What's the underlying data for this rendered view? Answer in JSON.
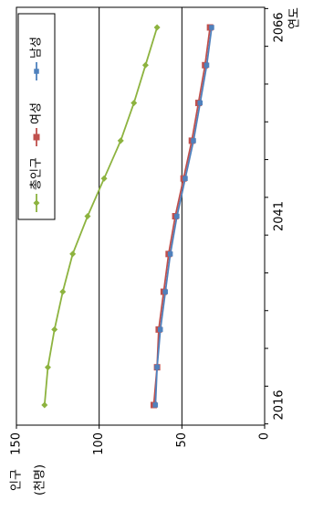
{
  "chart_data": {
    "type": "line",
    "y_label": [
      "인구",
      "(천명)"
    ],
    "x_label": "연도",
    "categories": [
      "2016",
      null,
      null,
      null,
      null,
      "2041",
      null,
      null,
      null,
      null,
      "2066"
    ],
    "series": [
      {
        "name": "총인구",
        "color": "#8db33f",
        "values": [
          133,
          131,
          127,
          122,
          116,
          107,
          97,
          87,
          79,
          72,
          65
        ]
      },
      {
        "name": "여성",
        "color": "#c0504d",
        "values": [
          67,
          65,
          64,
          61,
          58,
          54,
          49,
          44,
          40,
          36,
          33
        ]
      },
      {
        "name": "남성",
        "color": "#4f81bd",
        "values": [
          66,
          65,
          63,
          60,
          57,
          53,
          48,
          43,
          39,
          35,
          32
        ]
      }
    ],
    "ylim": [
      0,
      150
    ],
    "yticks": [
      0,
      50,
      100,
      150
    ],
    "grid": true
  }
}
